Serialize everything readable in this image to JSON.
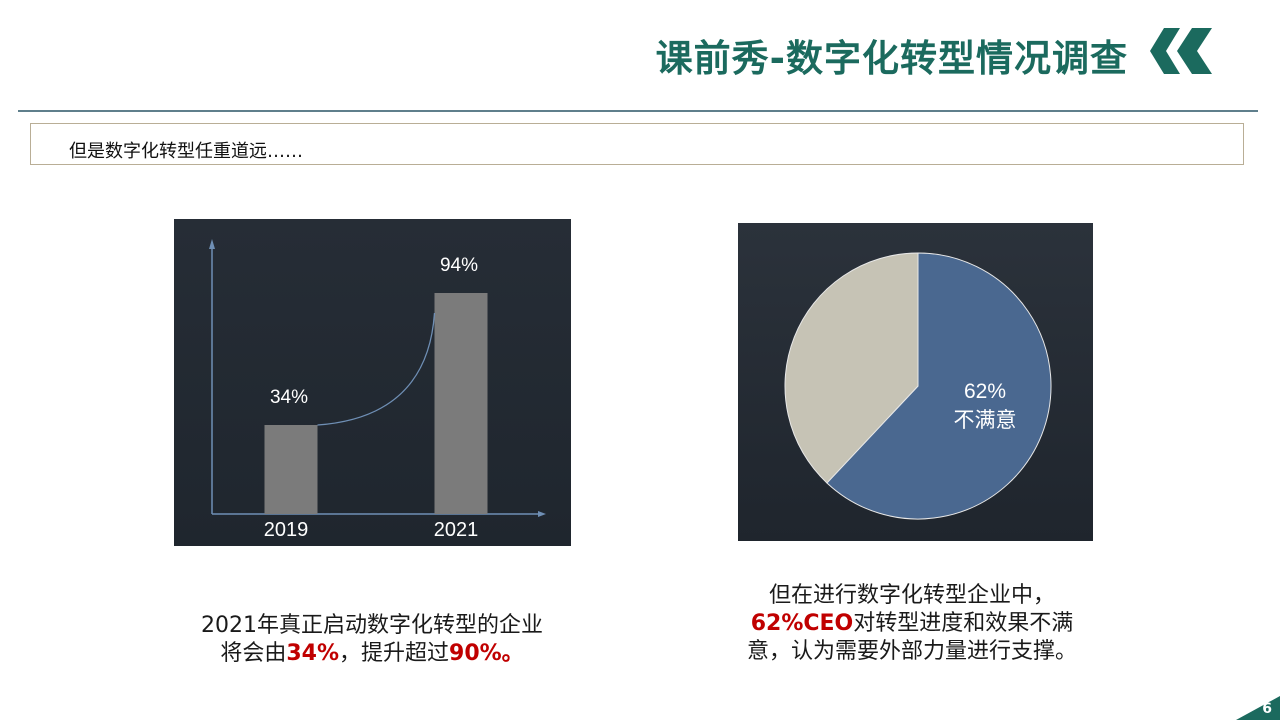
{
  "header": {
    "title": "课前秀-数字化转型情况调查",
    "brand_color": "#1b6a5e"
  },
  "subtitle": {
    "text": "但是数字化转型任重道远……"
  },
  "chart_data": [
    {
      "type": "bar",
      "categories": [
        "2019",
        "2021"
      ],
      "values": [
        34,
        94
      ],
      "data_labels": [
        "34%",
        "94%"
      ],
      "ylim": [
        0,
        100
      ],
      "bar_color": "#7b7b7b",
      "background": "#252c35",
      "grid": false,
      "trend_curve": true
    },
    {
      "type": "pie",
      "slices": [
        {
          "label": "62%\n不满意",
          "value": 62,
          "color": "#4a6890"
        },
        {
          "value": 38,
          "color": "#c6c3b5"
        }
      ],
      "center_label_line1": "62%",
      "center_label_line2": "不满意",
      "background": "#252c35"
    }
  ],
  "captions": {
    "left": {
      "line1": "2021年真正启动数字化转型的企业",
      "line2_prefix": "将会由",
      "line2_hl1": "34%",
      "line2_mid": "，提升超过",
      "line2_hl2": "90%。"
    },
    "right": {
      "line1": "但在进行数字化转型企业中，",
      "line2_hl": "62%CEO",
      "line2_rest": "对转型进度和效果不满",
      "line3": "意，认为需要外部力量进行支撑。"
    },
    "highlight_color": "#c00000"
  },
  "footer": {
    "page_number": "6"
  }
}
